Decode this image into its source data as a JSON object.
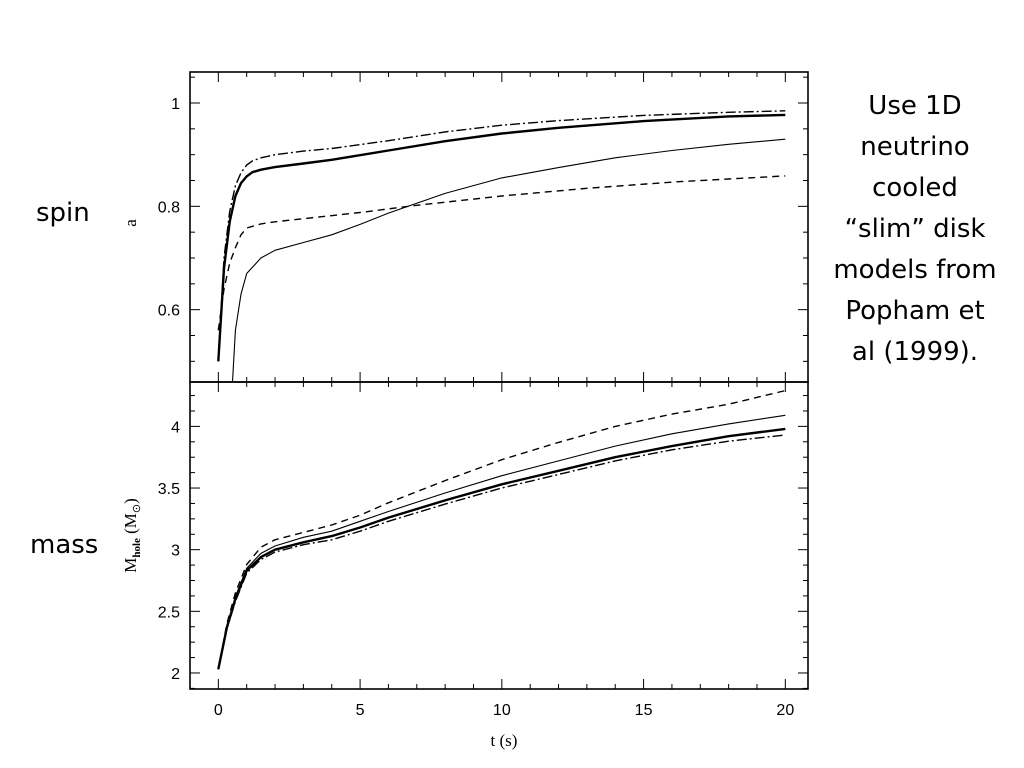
{
  "slide": {
    "spin_label": "spin",
    "mass_label": "mass",
    "caption": "Use 1D neutrino cooled “slim” disk models from Popham et al (1999)."
  },
  "chart_data": [
    {
      "type": "line",
      "panel": "spin",
      "ylabel": "a",
      "xlim": [
        -1,
        20.8
      ],
      "ylim": [
        0.46,
        1.06
      ],
      "yticks": [
        0.6,
        0.8,
        1
      ],
      "ytick_labels": [
        "0.6",
        "0.8",
        "1"
      ],
      "series": [
        {
          "style": "dash-dot",
          "x": [
            0,
            0.2,
            0.4,
            0.6,
            0.8,
            1,
            1.2,
            1.5,
            2,
            3,
            4,
            6,
            8,
            10,
            12,
            15,
            18,
            20
          ],
          "y": [
            0.5,
            0.7,
            0.79,
            0.84,
            0.865,
            0.88,
            0.888,
            0.894,
            0.9,
            0.907,
            0.912,
            0.927,
            0.944,
            0.957,
            0.966,
            0.976,
            0.982,
            0.985
          ]
        },
        {
          "style": "solid-thick",
          "x": [
            0,
            0.2,
            0.4,
            0.6,
            0.8,
            1,
            1.2,
            1.5,
            2,
            3,
            4,
            6,
            8,
            10,
            12,
            15,
            18,
            20
          ],
          "y": [
            0.5,
            0.68,
            0.77,
            0.82,
            0.845,
            0.858,
            0.866,
            0.871,
            0.876,
            0.883,
            0.89,
            0.908,
            0.926,
            0.941,
            0.952,
            0.965,
            0.974,
            0.977
          ]
        },
        {
          "style": "dashed",
          "x": [
            0,
            0.2,
            0.4,
            0.6,
            0.8,
            1,
            1.5,
            2,
            3,
            5,
            7,
            10,
            13,
            16,
            18,
            20
          ],
          "y": [
            0.56,
            0.64,
            0.69,
            0.72,
            0.745,
            0.758,
            0.766,
            0.77,
            0.776,
            0.788,
            0.802,
            0.82,
            0.835,
            0.847,
            0.853,
            0.859
          ]
        },
        {
          "style": "solid-thin",
          "x": [
            0.5,
            0.6,
            0.8,
            1,
            1.5,
            2,
            3,
            4,
            5,
            6,
            8,
            10,
            12,
            14,
            16,
            18,
            20
          ],
          "y": [
            0.46,
            0.56,
            0.63,
            0.67,
            0.7,
            0.715,
            0.73,
            0.745,
            0.765,
            0.787,
            0.825,
            0.855,
            0.875,
            0.894,
            0.908,
            0.92,
            0.93
          ]
        }
      ]
    },
    {
      "type": "line",
      "panel": "mass",
      "ylabel": "M_hole (M_⊙)",
      "xlabel": "t (s)",
      "xlim": [
        -1,
        20.8
      ],
      "ylim": [
        1.87,
        4.36
      ],
      "xticks": [
        0,
        5,
        10,
        15,
        20
      ],
      "xtick_labels": [
        "0",
        "5",
        "10",
        "15",
        "20"
      ],
      "yticks": [
        2,
        2.5,
        3,
        3.5,
        4
      ],
      "ytick_labels": [
        "2",
        "2.5",
        "3",
        "3.5",
        "4"
      ],
      "series": [
        {
          "style": "dashed",
          "x": [
            0,
            0.3,
            0.6,
            1,
            1.5,
            2,
            3,
            4,
            5,
            6,
            8,
            10,
            12,
            14,
            16,
            18,
            20
          ],
          "y": [
            2.03,
            2.4,
            2.65,
            2.88,
            3.02,
            3.08,
            3.14,
            3.2,
            3.28,
            3.38,
            3.56,
            3.73,
            3.87,
            4.0,
            4.1,
            4.18,
            4.29
          ]
        },
        {
          "style": "solid-thin",
          "x": [
            0,
            0.3,
            0.6,
            1,
            1.5,
            2,
            3,
            4,
            5,
            6,
            8,
            10,
            12,
            14,
            16,
            18,
            20
          ],
          "y": [
            2.03,
            2.38,
            2.62,
            2.85,
            2.97,
            3.03,
            3.1,
            3.15,
            3.23,
            3.31,
            3.46,
            3.6,
            3.72,
            3.84,
            3.94,
            4.02,
            4.09
          ]
        },
        {
          "style": "solid-thick",
          "x": [
            0,
            0.3,
            0.6,
            1,
            1.5,
            2,
            3,
            4,
            5,
            6,
            8,
            10,
            12,
            14,
            16,
            18,
            20
          ],
          "y": [
            2.03,
            2.37,
            2.6,
            2.83,
            2.94,
            3.0,
            3.06,
            3.11,
            3.18,
            3.26,
            3.4,
            3.53,
            3.64,
            3.75,
            3.84,
            3.92,
            3.98
          ]
        },
        {
          "style": "dash-dot",
          "x": [
            0,
            0.3,
            0.6,
            1,
            1.5,
            2,
            3,
            4,
            5,
            6,
            8,
            10,
            12,
            14,
            16,
            18,
            20
          ],
          "y": [
            2.03,
            2.36,
            2.58,
            2.81,
            2.92,
            2.98,
            3.04,
            3.08,
            3.15,
            3.23,
            3.37,
            3.5,
            3.61,
            3.72,
            3.81,
            3.88,
            3.93
          ]
        }
      ]
    }
  ]
}
